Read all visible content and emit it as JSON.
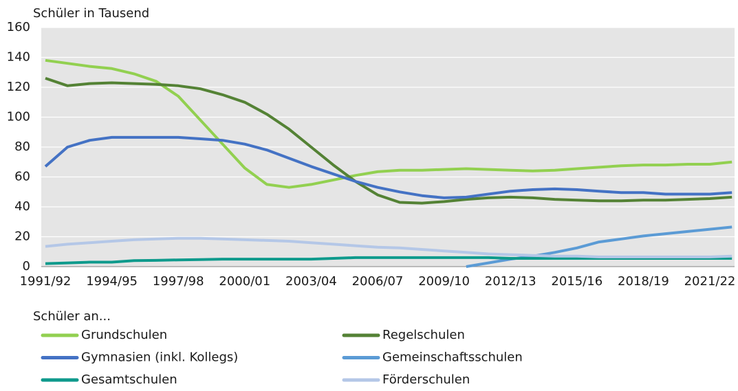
{
  "chart_data": {
    "type": "line",
    "y_axis_label": "Schüler in Tausend",
    "legend_title": "Schüler an...",
    "categories": [
      "1991/92",
      null,
      null,
      "1994/95",
      null,
      null,
      "1997/98",
      null,
      null,
      "2000/01",
      null,
      null,
      "2003/04",
      null,
      null,
      "2006/07",
      null,
      null,
      "2009/10",
      null,
      null,
      "2012/13",
      null,
      null,
      "2015/16",
      null,
      null,
      "2018/19",
      null,
      null,
      "2021/22",
      null
    ],
    "ylim": [
      0,
      160
    ],
    "yticks": [
      0,
      20,
      40,
      60,
      80,
      100,
      120,
      140,
      160
    ],
    "grid": true,
    "series": [
      {
        "name": "Grundschulen",
        "color": "#92d050",
        "values": [
          138,
          136,
          134,
          132.5,
          129,
          124,
          114,
          98,
          82,
          66,
          55,
          53,
          55,
          58,
          61,
          63.5,
          64.5,
          64.5,
          65,
          65.5,
          65,
          64.5,
          64,
          64.5,
          65.5,
          66.5,
          67.5,
          68,
          68,
          68.5,
          68.5,
          70
        ]
      },
      {
        "name": "Regelschulen",
        "color": "#548235",
        "values": [
          126,
          121,
          122.5,
          123,
          122.5,
          122,
          121,
          119,
          115,
          110,
          102,
          92,
          80,
          68,
          57,
          48,
          43,
          42.5,
          43.5,
          45,
          46,
          46.5,
          46,
          45,
          44.5,
          44,
          44,
          44.5,
          44.5,
          45,
          45.5,
          46.5
        ]
      },
      {
        "name": "Gymnasien (inkl. Kollegs)",
        "color": "#4472c4",
        "values": [
          67,
          80,
          84.5,
          86.5,
          86.5,
          86.5,
          86.5,
          85.5,
          84.5,
          82,
          78,
          72.5,
          67,
          62,
          57,
          53,
          50,
          47.5,
          46,
          46.5,
          48.5,
          50.5,
          51.5,
          52,
          51.5,
          50.5,
          49.5,
          49.5,
          48.5,
          48.5,
          48.5,
          49.5
        ]
      },
      {
        "name": "Gemeinschaftsschulen",
        "color": "#5b9bd5",
        "values": [
          null,
          null,
          null,
          null,
          null,
          null,
          null,
          null,
          null,
          null,
          null,
          null,
          null,
          null,
          null,
          null,
          null,
          null,
          null,
          0,
          2.5,
          5,
          7,
          9.5,
          12.5,
          16.5,
          18.5,
          20.5,
          22,
          23.5,
          25,
          26.5
        ]
      },
      {
        "name": "Gesamtschulen",
        "color": "#0e9a8c",
        "values": [
          2,
          2.5,
          3,
          3,
          4,
          4.2,
          4.5,
          4.7,
          5,
          5,
          5,
          5,
          5,
          5.5,
          6,
          6,
          6,
          6,
          6,
          6,
          6,
          5.5,
          5.5,
          5.5,
          5.5,
          5.5,
          5.5,
          5.5,
          5.5,
          5.5,
          5.5,
          5.5
        ]
      },
      {
        "name": "Förderschulen",
        "color": "#b4c7e7",
        "values": [
          13.5,
          15,
          16,
          17,
          18,
          18.5,
          19,
          19,
          18.5,
          18,
          17.5,
          17,
          16,
          15,
          14,
          13,
          12.5,
          11.5,
          10.5,
          9.5,
          8.5,
          8,
          7.5,
          7,
          7,
          6.5,
          6.5,
          6.5,
          6.5,
          6.5,
          6.5,
          7
        ]
      }
    ]
  }
}
